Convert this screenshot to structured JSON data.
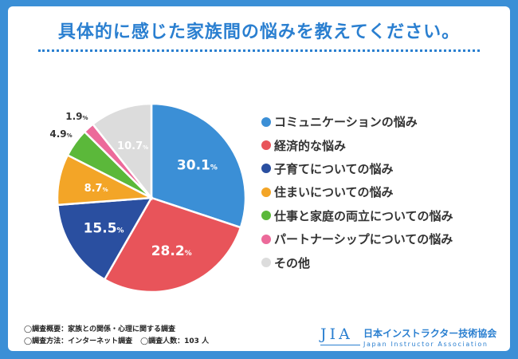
{
  "title": "具体的に感じた家族間の悩みを教えてください。",
  "chart_data": {
    "type": "pie",
    "title": "具体的に感じた家族間の悩みを教えてください。",
    "unit": "%",
    "categories": [
      "コミュニケーションの悩み",
      "経済的な悩み",
      "子育てについての悩み",
      "住まいについての悩み",
      "仕事と家庭の両立についての悩み",
      "パートナーシップについての悩み",
      "その他"
    ],
    "values": [
      30.1,
      28.2,
      15.5,
      8.7,
      4.9,
      1.9,
      10.7
    ],
    "labels": [
      "30.1",
      "28.2",
      "15.5",
      "8.7",
      "4.9",
      "1.9",
      "10.7"
    ],
    "colors": [
      "#3b8fd6",
      "#e8545a",
      "#2a4fa0",
      "#f3a527",
      "#5bb83a",
      "#ec6a9a",
      "#dcdcdc"
    ],
    "label_colors": [
      "#ffffff",
      "#ffffff",
      "#ffffff",
      "#ffffff",
      "#333333",
      "#333333",
      "#ffffff"
    ],
    "legend": "right"
  },
  "notes": {
    "survey_overview": "◯調査概要：家族との関係・心理に関する調査",
    "survey_method": "◯調査方法：インターネット調査",
    "respondents": "◯調査人数：103 人"
  },
  "logo": {
    "mark": "JIA",
    "name_ja": "日本インストラクター技術協会",
    "name_en": "Japan Instructor Association"
  }
}
